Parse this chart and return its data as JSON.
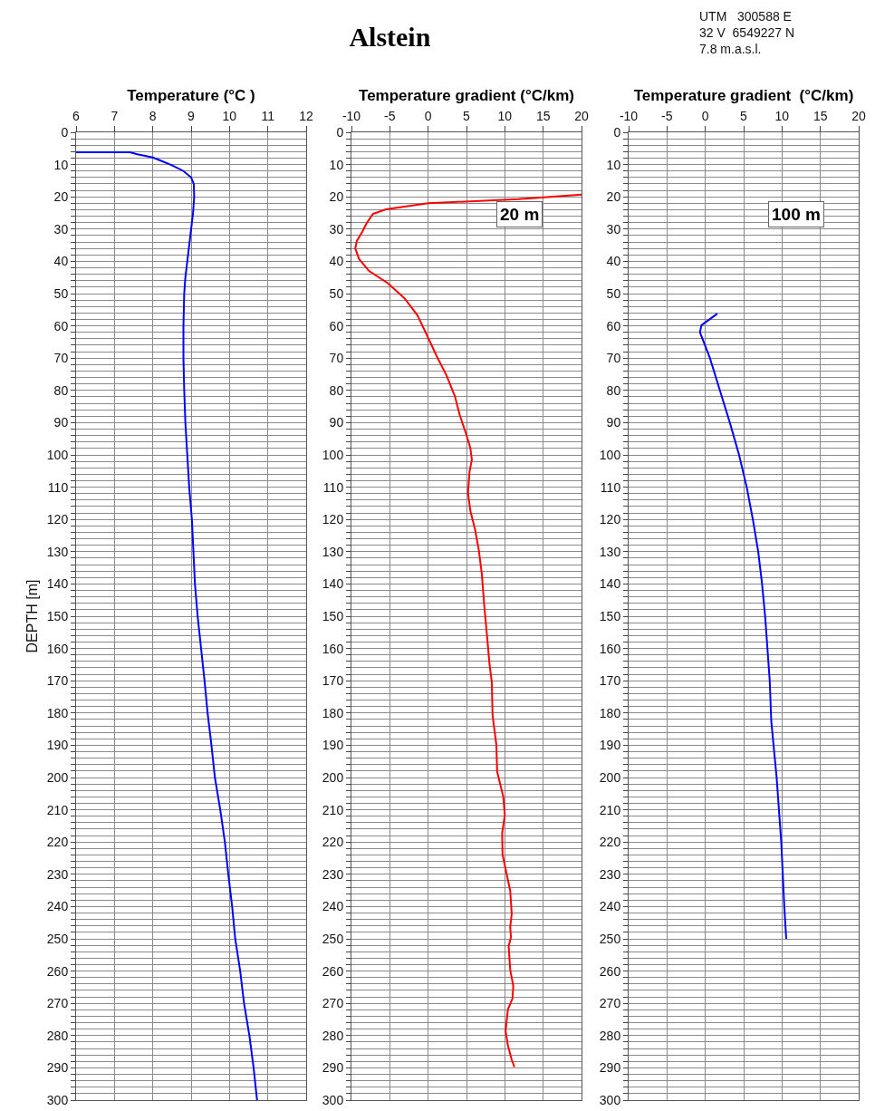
{
  "chart_data": [
    {
      "type": "line",
      "xlabel": "Temperature (°C )",
      "ylabel": "DEPTH [m]",
      "grid": true,
      "xlim": [
        6,
        12
      ],
      "xticks": [
        6,
        7,
        8,
        9,
        10,
        11,
        12
      ],
      "ylim": [
        300,
        0
      ],
      "yticks": [
        0,
        {
          "value": 2,
          "label": null
        },
        {
          "value": 4,
          "label": null
        },
        {
          "value": 6,
          "label": null
        },
        {
          "value": 8,
          "label": null
        },
        10,
        {
          "value": 12,
          "label": null
        },
        {
          "value": 14,
          "label": null
        },
        {
          "value": 16,
          "label": null
        },
        {
          "value": 18,
          "label": null
        },
        20,
        {
          "value": 22,
          "label": null
        },
        {
          "value": 24,
          "label": null
        },
        {
          "value": 26,
          "label": null
        },
        {
          "value": 28,
          "label": null
        },
        30,
        {
          "value": 32,
          "label": null
        },
        {
          "value": 34,
          "label": null
        },
        {
          "value": 36,
          "label": null
        },
        {
          "value": 38,
          "label": null
        },
        40,
        {
          "value": 42,
          "label": null
        },
        {
          "value": 44,
          "label": null
        },
        {
          "value": 46,
          "label": null
        },
        {
          "value": 48,
          "label": null
        },
        50,
        {
          "value": 52,
          "label": null
        },
        {
          "value": 54,
          "label": null
        },
        {
          "value": 56,
          "label": null
        },
        {
          "value": 58,
          "label": null
        },
        60,
        {
          "value": 62,
          "label": null
        },
        {
          "value": 64,
          "label": null
        },
        {
          "value": 66,
          "label": null
        },
        {
          "value": 68,
          "label": null
        },
        70,
        {
          "value": 72,
          "label": null
        },
        {
          "value": 74,
          "label": null
        },
        {
          "value": 76,
          "label": null
        },
        {
          "value": 78,
          "label": null
        },
        80,
        {
          "value": 82,
          "label": null
        },
        {
          "value": 84,
          "label": null
        },
        {
          "value": 86,
          "label": null
        },
        {
          "value": 88,
          "label": null
        },
        90,
        {
          "value": 92,
          "label": null
        },
        {
          "value": 94,
          "label": null
        },
        {
          "value": 96,
          "label": null
        },
        {
          "value": 98,
          "label": null
        },
        100,
        {
          "value": 102,
          "label": null
        },
        {
          "value": 104,
          "label": null
        },
        {
          "value": 106,
          "label": null
        },
        {
          "value": 108,
          "label": null
        },
        110,
        {
          "value": 112,
          "label": null
        },
        {
          "value": 114,
          "label": null
        },
        {
          "value": 116,
          "label": null
        },
        {
          "value": 118,
          "label": null
        },
        120,
        {
          "value": 122,
          "label": null
        },
        {
          "value": 124,
          "label": null
        },
        {
          "value": 126,
          "label": null
        },
        {
          "value": 128,
          "label": null
        },
        130,
        {
          "value": 132,
          "label": null
        },
        {
          "value": 134,
          "label": null
        },
        {
          "value": 136,
          "label": null
        },
        {
          "value": 138,
          "label": null
        },
        140,
        {
          "value": 142,
          "label": null
        },
        {
          "value": 144,
          "label": null
        },
        {
          "value": 146,
          "label": null
        },
        {
          "value": 148,
          "label": null
        },
        150,
        {
          "value": 152,
          "label": null
        },
        {
          "value": 154,
          "label": null
        },
        {
          "value": 156,
          "label": null
        },
        {
          "value": 158,
          "label": null
        },
        160,
        {
          "value": 162,
          "label": null
        },
        {
          "value": 164,
          "label": null
        },
        {
          "value": 166,
          "label": null
        },
        {
          "value": 168,
          "label": null
        },
        170,
        {
          "value": 172,
          "label": null
        },
        {
          "value": 174,
          "label": null
        },
        {
          "value": 176,
          "label": null
        },
        {
          "value": 178,
          "label": null
        },
        180,
        {
          "value": 182,
          "label": null
        },
        {
          "value": 184,
          "label": null
        },
        {
          "value": 186,
          "label": null
        },
        {
          "value": 188,
          "label": null
        },
        190,
        {
          "value": 192,
          "label": null
        },
        {
          "value": 194,
          "label": null
        },
        {
          "value": 196,
          "label": null
        },
        {
          "value": 198,
          "label": null
        },
        200,
        {
          "value": 202,
          "label": null
        },
        {
          "value": 204,
          "label": null
        },
        {
          "value": 206,
          "label": null
        },
        {
          "value": 208,
          "label": null
        },
        210,
        {
          "value": 212,
          "label": null
        },
        {
          "value": 214,
          "label": null
        },
        {
          "value": 216,
          "label": null
        },
        {
          "value": 218,
          "label": null
        },
        220,
        {
          "value": 222,
          "label": null
        },
        {
          "value": 224,
          "label": null
        },
        {
          "value": 226,
          "label": null
        },
        {
          "value": 228,
          "label": null
        },
        230,
        {
          "value": 232,
          "label": null
        },
        {
          "value": 234,
          "label": null
        },
        {
          "value": 236,
          "label": null
        },
        {
          "value": 238,
          "label": null
        },
        240,
        {
          "value": 242,
          "label": null
        },
        {
          "value": 244,
          "label": null
        },
        {
          "value": 246,
          "label": null
        },
        {
          "value": 248,
          "label": null
        },
        250,
        {
          "value": 252,
          "label": null
        },
        {
          "value": 254,
          "label": null
        },
        {
          "value": 256,
          "label": null
        },
        {
          "value": 258,
          "label": null
        },
        260,
        {
          "value": 262,
          "label": null
        },
        {
          "value": 264,
          "label": null
        },
        {
          "value": 266,
          "label": null
        },
        {
          "value": 268,
          "label": null
        },
        270,
        {
          "value": 272,
          "label": null
        },
        {
          "value": 274,
          "label": null
        },
        {
          "value": 276,
          "label": null
        },
        {
          "value": 278,
          "label": null
        },
        280,
        {
          "value": 282,
          "label": null
        },
        {
          "value": 284,
          "label": null
        },
        {
          "value": 286,
          "label": null
        },
        {
          "value": 288,
          "label": null
        },
        290,
        {
          "value": 292,
          "label": null
        },
        {
          "value": 294,
          "label": null
        },
        {
          "value": 296,
          "label": null
        },
        {
          "value": 298,
          "label": null
        },
        300
      ],
      "series": [
        {
          "color": "#0000ff",
          "x": [
            6.0,
            7.4,
            7.6,
            8.0,
            8.25,
            8.5,
            8.8,
            9.0,
            9.07,
            9.08,
            9.05,
            9.0,
            8.95,
            8.9,
            8.85,
            8.82,
            8.8,
            8.8,
            8.82,
            8.85,
            8.9,
            8.95,
            9.02,
            9.1,
            9.17,
            9.26,
            9.35,
            9.43,
            9.53,
            9.62,
            9.76,
            9.88,
            9.97,
            10.07,
            10.15,
            10.28,
            10.38,
            10.52,
            10.63,
            10.72
          ],
          "values": [
            6.2,
            6.2,
            6.8,
            7.8,
            9,
            10.2,
            12,
            14,
            16,
            20,
            25,
            30,
            35,
            40,
            45,
            50,
            60,
            70,
            80,
            90,
            100,
            110,
            120,
            140,
            150,
            160,
            170,
            180,
            190,
            200,
            210,
            220,
            230,
            240,
            250,
            260,
            270,
            280,
            290,
            300
          ]
        }
      ]
    },
    {
      "type": "line",
      "title": "Alstein",
      "xlabel": "Temperature gradient (°C/km)",
      "grid": true,
      "xlim": [
        -10,
        20
      ],
      "xticks": [
        -10,
        -5,
        0,
        5,
        10,
        15,
        20
      ],
      "ylim": [
        300,
        0
      ],
      "yticks": [
        0,
        {
          "value": 2,
          "label": null
        },
        {
          "value": 4,
          "label": null
        },
        {
          "value": 6,
          "label": null
        },
        {
          "value": 8,
          "label": null
        },
        10,
        {
          "value": 12,
          "label": null
        },
        {
          "value": 14,
          "label": null
        },
        {
          "value": 16,
          "label": null
        },
        {
          "value": 18,
          "label": null
        },
        20,
        {
          "value": 22,
          "label": null
        },
        {
          "value": 24,
          "label": null
        },
        {
          "value": 26,
          "label": null
        },
        {
          "value": 28,
          "label": null
        },
        30,
        {
          "value": 32,
          "label": null
        },
        {
          "value": 34,
          "label": null
        },
        {
          "value": 36,
          "label": null
        },
        {
          "value": 38,
          "label": null
        },
        40,
        {
          "value": 42,
          "label": null
        },
        {
          "value": 44,
          "label": null
        },
        {
          "value": 46,
          "label": null
        },
        {
          "value": 48,
          "label": null
        },
        50,
        {
          "value": 52,
          "label": null
        },
        {
          "value": 54,
          "label": null
        },
        {
          "value": 56,
          "label": null
        },
        {
          "value": 58,
          "label": null
        },
        60,
        {
          "value": 62,
          "label": null
        },
        {
          "value": 64,
          "label": null
        },
        {
          "value": 66,
          "label": null
        },
        {
          "value": 68,
          "label": null
        },
        70,
        {
          "value": 72,
          "label": null
        },
        {
          "value": 74,
          "label": null
        },
        {
          "value": 76,
          "label": null
        },
        {
          "value": 78,
          "label": null
        },
        80,
        {
          "value": 82,
          "label": null
        },
        {
          "value": 84,
          "label": null
        },
        {
          "value": 86,
          "label": null
        },
        {
          "value": 88,
          "label": null
        },
        90,
        {
          "value": 92,
          "label": null
        },
        {
          "value": 94,
          "label": null
        },
        {
          "value": 96,
          "label": null
        },
        {
          "value": 98,
          "label": null
        },
        100,
        {
          "value": 102,
          "label": null
        },
        {
          "value": 104,
          "label": null
        },
        {
          "value": 106,
          "label": null
        },
        {
          "value": 108,
          "label": null
        },
        110,
        {
          "value": 112,
          "label": null
        },
        {
          "value": 114,
          "label": null
        },
        {
          "value": 116,
          "label": null
        },
        {
          "value": 118,
          "label": null
        },
        120,
        {
          "value": 122,
          "label": null
        },
        {
          "value": 124,
          "label": null
        },
        {
          "value": 126,
          "label": null
        },
        {
          "value": 128,
          "label": null
        },
        130,
        {
          "value": 132,
          "label": null
        },
        {
          "value": 134,
          "label": null
        },
        {
          "value": 136,
          "label": null
        },
        {
          "value": 138,
          "label": null
        },
        140,
        {
          "value": 142,
          "label": null
        },
        {
          "value": 144,
          "label": null
        },
        {
          "value": 146,
          "label": null
        },
        {
          "value": 148,
          "label": null
        },
        150,
        {
          "value": 152,
          "label": null
        },
        {
          "value": 154,
          "label": null
        },
        {
          "value": 156,
          "label": null
        },
        {
          "value": 158,
          "label": null
        },
        160,
        {
          "value": 162,
          "label": null
        },
        {
          "value": 164,
          "label": null
        },
        {
          "value": 166,
          "label": null
        },
        {
          "value": 168,
          "label": null
        },
        170,
        {
          "value": 172,
          "label": null
        },
        {
          "value": 174,
          "label": null
        },
        {
          "value": 176,
          "label": null
        },
        {
          "value": 178,
          "label": null
        },
        180,
        {
          "value": 182,
          "label": null
        },
        {
          "value": 184,
          "label": null
        },
        {
          "value": 186,
          "label": null
        },
        {
          "value": 188,
          "label": null
        },
        190,
        {
          "value": 192,
          "label": null
        },
        {
          "value": 194,
          "label": null
        },
        {
          "value": 196,
          "label": null
        },
        {
          "value": 198,
          "label": null
        },
        200,
        {
          "value": 202,
          "label": null
        },
        {
          "value": 204,
          "label": null
        },
        {
          "value": 206,
          "label": null
        },
        {
          "value": 208,
          "label": null
        },
        210,
        {
          "value": 212,
          "label": null
        },
        {
          "value": 214,
          "label": null
        },
        {
          "value": 216,
          "label": null
        },
        {
          "value": 218,
          "label": null
        },
        220,
        {
          "value": 222,
          "label": null
        },
        {
          "value": 224,
          "label": null
        },
        {
          "value": 226,
          "label": null
        },
        {
          "value": 228,
          "label": null
        },
        230,
        {
          "value": 232,
          "label": null
        },
        {
          "value": 234,
          "label": null
        },
        {
          "value": 236,
          "label": null
        },
        {
          "value": 238,
          "label": null
        },
        240,
        {
          "value": 242,
          "label": null
        },
        {
          "value": 244,
          "label": null
        },
        {
          "value": 246,
          "label": null
        },
        {
          "value": 248,
          "label": null
        },
        250,
        {
          "value": 252,
          "label": null
        },
        {
          "value": 254,
          "label": null
        },
        {
          "value": 256,
          "label": null
        },
        {
          "value": 258,
          "label": null
        },
        260,
        {
          "value": 262,
          "label": null
        },
        {
          "value": 264,
          "label": null
        },
        {
          "value": 266,
          "label": null
        },
        {
          "value": 268,
          "label": null
        },
        270,
        {
          "value": 272,
          "label": null
        },
        {
          "value": 274,
          "label": null
        },
        {
          "value": 276,
          "label": null
        },
        {
          "value": 278,
          "label": null
        },
        280,
        {
          "value": 282,
          "label": null
        },
        {
          "value": 284,
          "label": null
        },
        {
          "value": 286,
          "label": null
        },
        {
          "value": 288,
          "label": null
        },
        290,
        {
          "value": 292,
          "label": null
        },
        {
          "value": 294,
          "label": null
        },
        {
          "value": 296,
          "label": null
        },
        {
          "value": 298,
          "label": null
        },
        300
      ],
      "annotations": [
        "20 m"
      ],
      "series": [
        {
          "color": "#ff0000",
          "x": [
            20,
            11.8,
            0.0,
            -5.5,
            -7.2,
            -8.0,
            -8.6,
            -9.3,
            -9.5,
            -9.0,
            -7.7,
            -5.3,
            -3.1,
            -1.4,
            0.0,
            1.2,
            2.4,
            3.5,
            4.1,
            4.9,
            5.5,
            5.7,
            5.4,
            5.2,
            5.5,
            6.1,
            6.6,
            7.0,
            7.3,
            7.8,
            8.0,
            8.3,
            8.4,
            8.9,
            9.0,
            9.8,
            10.0,
            9.65,
            9.7,
            10.2,
            10.7,
            10.9,
            10.7,
            10.8,
            10.5,
            10.7,
            11.1,
            11.0,
            10.4,
            10.1,
            10.4,
            10.9,
            11.25
          ],
          "values": [
            19.3,
            20.7,
            22.0,
            23.9,
            25.3,
            28.1,
            30.9,
            33.7,
            36,
            39.3,
            43,
            46.7,
            51.4,
            56.7,
            63.7,
            69.8,
            75.4,
            81.9,
            87.5,
            93.1,
            97.8,
            101.5,
            105.2,
            111.7,
            117.3,
            122.9,
            129.4,
            136.9,
            146.2,
            159.3,
            164.8,
            170.4,
            180.7,
            190,
            198.2,
            206,
            211.6,
            217.2,
            223.9,
            229.5,
            235.1,
            242.3,
            246.3,
            249.5,
            252.3,
            259.6,
            264.6,
            268.5,
            271.9,
            278.6,
            283,
            287.5,
            289.7
          ]
        }
      ]
    },
    {
      "type": "line",
      "xlabel": "Temperature gradient  (°C/km)",
      "grid": true,
      "xlim": [
        -10,
        20
      ],
      "xticks": [
        -10,
        -5,
        0,
        5,
        10,
        15,
        20
      ],
      "ylim": [
        300,
        0
      ],
      "yticks": [
        0,
        {
          "value": 2,
          "label": null
        },
        {
          "value": 4,
          "label": null
        },
        {
          "value": 6,
          "label": null
        },
        {
          "value": 8,
          "label": null
        },
        10,
        {
          "value": 12,
          "label": null
        },
        {
          "value": 14,
          "label": null
        },
        {
          "value": 16,
          "label": null
        },
        {
          "value": 18,
          "label": null
        },
        20,
        {
          "value": 22,
          "label": null
        },
        {
          "value": 24,
          "label": null
        },
        {
          "value": 26,
          "label": null
        },
        {
          "value": 28,
          "label": null
        },
        30,
        {
          "value": 32,
          "label": null
        },
        {
          "value": 34,
          "label": null
        },
        {
          "value": 36,
          "label": null
        },
        {
          "value": 38,
          "label": null
        },
        40,
        {
          "value": 42,
          "label": null
        },
        {
          "value": 44,
          "label": null
        },
        {
          "value": 46,
          "label": null
        },
        {
          "value": 48,
          "label": null
        },
        50,
        {
          "value": 52,
          "label": null
        },
        {
          "value": 54,
          "label": null
        },
        {
          "value": 56,
          "label": null
        },
        {
          "value": 58,
          "label": null
        },
        60,
        {
          "value": 62,
          "label": null
        },
        {
          "value": 64,
          "label": null
        },
        {
          "value": 66,
          "label": null
        },
        {
          "value": 68,
          "label": null
        },
        70,
        {
          "value": 72,
          "label": null
        },
        {
          "value": 74,
          "label": null
        },
        {
          "value": 76,
          "label": null
        },
        {
          "value": 78,
          "label": null
        },
        80,
        {
          "value": 82,
          "label": null
        },
        {
          "value": 84,
          "label": null
        },
        {
          "value": 86,
          "label": null
        },
        {
          "value": 88,
          "label": null
        },
        90,
        {
          "value": 92,
          "label": null
        },
        {
          "value": 94,
          "label": null
        },
        {
          "value": 96,
          "label": null
        },
        {
          "value": 98,
          "label": null
        },
        100,
        {
          "value": 102,
          "label": null
        },
        {
          "value": 104,
          "label": null
        },
        {
          "value": 106,
          "label": null
        },
        {
          "value": 108,
          "label": null
        },
        110,
        {
          "value": 112,
          "label": null
        },
        {
          "value": 114,
          "label": null
        },
        {
          "value": 116,
          "label": null
        },
        {
          "value": 118,
          "label": null
        },
        120,
        {
          "value": 122,
          "label": null
        },
        {
          "value": 124,
          "label": null
        },
        {
          "value": 126,
          "label": null
        },
        {
          "value": 128,
          "label": null
        },
        130,
        {
          "value": 132,
          "label": null
        },
        {
          "value": 134,
          "label": null
        },
        {
          "value": 136,
          "label": null
        },
        {
          "value": 138,
          "label": null
        },
        140,
        {
          "value": 142,
          "label": null
        },
        {
          "value": 144,
          "label": null
        },
        {
          "value": 146,
          "label": null
        },
        {
          "value": 148,
          "label": null
        },
        150,
        {
          "value": 152,
          "label": null
        },
        {
          "value": 154,
          "label": null
        },
        {
          "value": 156,
          "label": null
        },
        {
          "value": 158,
          "label": null
        },
        160,
        {
          "value": 162,
          "label": null
        },
        {
          "value": 164,
          "label": null
        },
        {
          "value": 166,
          "label": null
        },
        {
          "value": 168,
          "label": null
        },
        170,
        {
          "value": 172,
          "label": null
        },
        {
          "value": 174,
          "label": null
        },
        {
          "value": 176,
          "label": null
        },
        {
          "value": 178,
          "label": null
        },
        180,
        {
          "value": 182,
          "label": null
        },
        {
          "value": 184,
          "label": null
        },
        {
          "value": 186,
          "label": null
        },
        {
          "value": 188,
          "label": null
        },
        190,
        {
          "value": 192,
          "label": null
        },
        {
          "value": 194,
          "label": null
        },
        {
          "value": 196,
          "label": null
        },
        {
          "value": 198,
          "label": null
        },
        200,
        {
          "value": 202,
          "label": null
        },
        {
          "value": 204,
          "label": null
        },
        {
          "value": 206,
          "label": null
        },
        {
          "value": 208,
          "label": null
        },
        210,
        {
          "value": 212,
          "label": null
        },
        {
          "value": 214,
          "label": null
        },
        {
          "value": 216,
          "label": null
        },
        {
          "value": 218,
          "label": null
        },
        220,
        {
          "value": 222,
          "label": null
        },
        {
          "value": 224,
          "label": null
        },
        {
          "value": 226,
          "label": null
        },
        {
          "value": 228,
          "label": null
        },
        230,
        {
          "value": 232,
          "label": null
        },
        {
          "value": 234,
          "label": null
        },
        {
          "value": 236,
          "label": null
        },
        {
          "value": 238,
          "label": null
        },
        240,
        {
          "value": 242,
          "label": null
        },
        {
          "value": 244,
          "label": null
        },
        {
          "value": 246,
          "label": null
        },
        {
          "value": 248,
          "label": null
        },
        250,
        {
          "value": 252,
          "label": null
        },
        {
          "value": 254,
          "label": null
        },
        {
          "value": 256,
          "label": null
        },
        {
          "value": 258,
          "label": null
        },
        260,
        {
          "value": 262,
          "label": null
        },
        {
          "value": 264,
          "label": null
        },
        {
          "value": 266,
          "label": null
        },
        {
          "value": 268,
          "label": null
        },
        270,
        {
          "value": 272,
          "label": null
        },
        {
          "value": 274,
          "label": null
        },
        {
          "value": 276,
          "label": null
        },
        {
          "value": 278,
          "label": null
        },
        280,
        {
          "value": 282,
          "label": null
        },
        {
          "value": 284,
          "label": null
        },
        {
          "value": 286,
          "label": null
        },
        {
          "value": 288,
          "label": null
        },
        290,
        {
          "value": 292,
          "label": null
        },
        {
          "value": 294,
          "label": null
        },
        {
          "value": 296,
          "label": null
        },
        {
          "value": 298,
          "label": null
        },
        300
      ],
      "annotations": [
        "100 m",
        "UTM   300588 E\n32 V  6549227 N\n7.8 m.a.s.l."
      ],
      "series": [
        {
          "color": "#0000ff",
          "x": [
            1.57,
            -0.5,
            -0.7,
            0.6,
            1.9,
            3.2,
            4.4,
            5.4,
            6.2,
            6.9,
            7.4,
            7.8,
            8.1,
            8.4,
            8.6,
            8.9,
            9.3,
            9.6,
            9.9,
            10.1,
            10.3,
            10.55
          ],
          "values": [
            56.2,
            59.8,
            62,
            70,
            80,
            90,
            100,
            110,
            120,
            130,
            140,
            150,
            160,
            170,
            182.5,
            190,
            200,
            210,
            220,
            230,
            240,
            250
          ]
        }
      ]
    }
  ]
}
